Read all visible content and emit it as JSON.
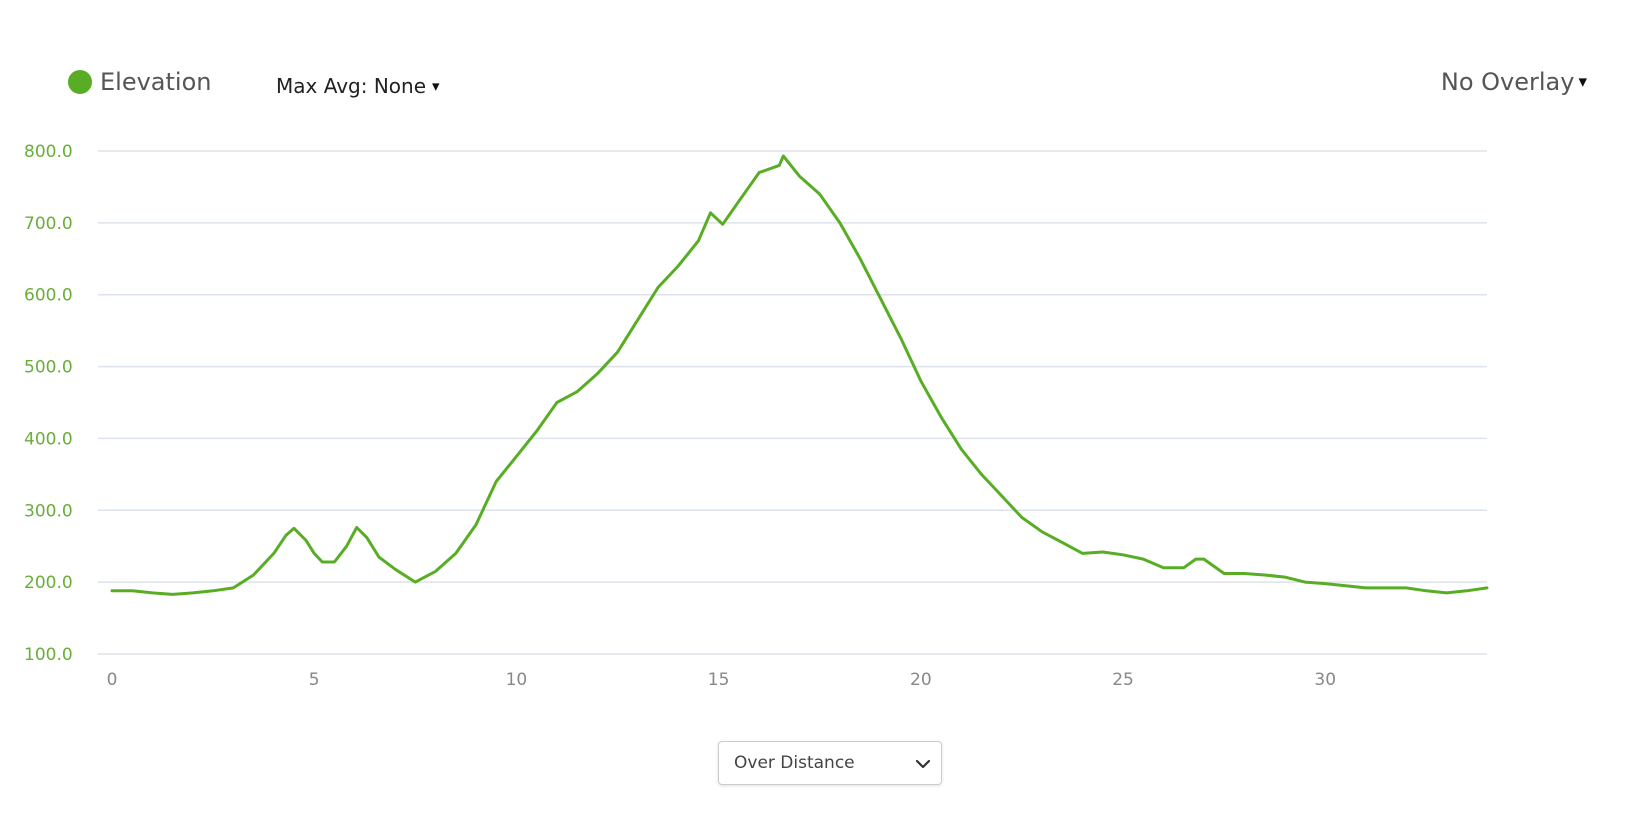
{
  "header": {
    "legend_label": "Elevation",
    "max_avg_label": "Max Avg: None",
    "overlay_label": "No Overlay",
    "caret": "▾"
  },
  "colors": {
    "series": "#59ad24",
    "grid": "#dde3ea",
    "y_tick": "#6aae3a",
    "x_tick": "#888888"
  },
  "chart_data": {
    "type": "line",
    "title": "",
    "xlabel": "",
    "ylabel": "",
    "xlim": [
      0,
      34
    ],
    "ylim": [
      100,
      800
    ],
    "grid": true,
    "y_ticks": [
      "100.0",
      "200.0",
      "300.0",
      "400.0",
      "500.0",
      "600.0",
      "700.0",
      "800.0"
    ],
    "x_ticks": [
      "0",
      "5",
      "10",
      "15",
      "20",
      "25",
      "30"
    ],
    "series": [
      {
        "name": "Elevation",
        "x": [
          0,
          0.5,
          1,
          1.5,
          2,
          2.5,
          3,
          3.5,
          4,
          4.3,
          4.5,
          4.8,
          5,
          5.2,
          5.5,
          5.8,
          6.05,
          6.3,
          6.6,
          7,
          7.5,
          8,
          8.5,
          9,
          9.5,
          10,
          10.5,
          11,
          11.5,
          12,
          12.5,
          13,
          13.5,
          14,
          14.5,
          14.8,
          15.1,
          15.5,
          16,
          16.5,
          16.6,
          17,
          17.5,
          18,
          18.5,
          19,
          19.5,
          20,
          20.5,
          21,
          21.5,
          22,
          22.5,
          23,
          23.5,
          24,
          24.5,
          25,
          25.5,
          26,
          26.5,
          26.8,
          27,
          27.5,
          28,
          28.5,
          29,
          29.5,
          30,
          30.5,
          31,
          31.5,
          32,
          32.5,
          33,
          33.5,
          34
        ],
        "y": [
          188,
          188,
          185,
          183,
          185,
          188,
          192,
          210,
          240,
          265,
          275,
          258,
          240,
          228,
          228,
          250,
          276,
          262,
          235,
          218,
          200,
          215,
          240,
          280,
          340,
          375,
          410,
          450,
          465,
          490,
          520,
          565,
          610,
          640,
          675,
          714,
          698,
          730,
          770,
          780,
          793,
          765,
          740,
          700,
          650,
          595,
          540,
          480,
          430,
          385,
          350,
          320,
          290,
          270,
          255,
          240,
          242,
          238,
          232,
          220,
          220,
          232,
          232,
          212,
          212,
          210,
          207,
          200,
          198,
          195,
          192,
          192,
          192,
          188,
          185,
          188,
          192
        ]
      }
    ]
  },
  "controls": {
    "x_mode_selected": "Over Distance"
  }
}
